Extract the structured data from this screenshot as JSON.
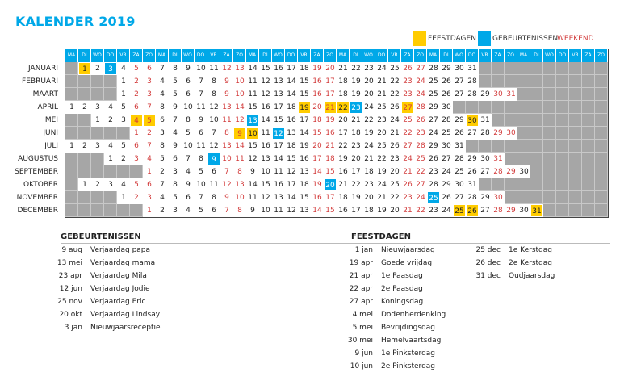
{
  "title": "KALENDER 2019",
  "legend": {
    "feestdagen": {
      "label": "FEESTDAGEN",
      "color": "#ffcc00"
    },
    "gebeurtenissen": {
      "label": "GEBEURTENISSEN",
      "color": "#00a8e8"
    },
    "weekend": {
      "label": "WEEKEND",
      "color": "#d23a3a"
    }
  },
  "weekdays": [
    "MA",
    "DI",
    "WO",
    "DO",
    "VR",
    "ZA",
    "ZO"
  ],
  "year": 2019,
  "months": [
    {
      "name": "JANUARI",
      "start": 1,
      "days": 31
    },
    {
      "name": "FEBRUARI",
      "start": 4,
      "days": 28
    },
    {
      "name": "MAART",
      "start": 4,
      "days": 31
    },
    {
      "name": "APRIL",
      "start": 0,
      "days": 30
    },
    {
      "name": "MEI",
      "start": 2,
      "days": 31
    },
    {
      "name": "JUNI",
      "start": 5,
      "days": 30
    },
    {
      "name": "JULI",
      "start": 0,
      "days": 31
    },
    {
      "name": "AUGUSTUS",
      "start": 3,
      "days": 31
    },
    {
      "name": "SEPTEMBER",
      "start": 6,
      "days": 30
    },
    {
      "name": "OKTOBER",
      "start": 1,
      "days": 31
    },
    {
      "name": "NOVEMBER",
      "start": 4,
      "days": 30
    },
    {
      "name": "DECEMBER",
      "start": 6,
      "days": 31
    }
  ],
  "highlights": {
    "feest": [
      "1-1",
      "4-19",
      "4-21",
      "4-22",
      "4-27",
      "5-4",
      "5-5",
      "5-30",
      "6-9",
      "6-10",
      "12-25",
      "12-26",
      "12-31"
    ],
    "geb": [
      "1-3",
      "4-23",
      "5-13",
      "6-12",
      "8-9",
      "10-20",
      "11-25"
    ]
  },
  "gebeurtenissen": {
    "heading": "GEBEURTENISSEN",
    "items": [
      {
        "date": "9 aug",
        "label": "Verjaardag papa"
      },
      {
        "date": "13 mei",
        "label": "Verjaardag mama"
      },
      {
        "date": "23 apr",
        "label": "Verjaardag Mila"
      },
      {
        "date": "12 jun",
        "label": "Verjaardag Jodie"
      },
      {
        "date": "25 nov",
        "label": "Verjaardag Eric"
      },
      {
        "date": "20 okt",
        "label": "Verjaardag Lindsay"
      },
      {
        "date": "3 jan",
        "label": "Nieuwjaarsreceptie"
      }
    ]
  },
  "feestdagen": {
    "heading": "FEESTDAGEN",
    "col1": [
      {
        "date": "1 jan",
        "label": "Nieuwjaarsdag"
      },
      {
        "date": "19 apr",
        "label": "Goede vrijdag"
      },
      {
        "date": "21 apr",
        "label": "1e Paasdag"
      },
      {
        "date": "22 apr",
        "label": "2e Paasdag"
      },
      {
        "date": "27 apr",
        "label": "Koningsdag"
      },
      {
        "date": "4 mei",
        "label": "Dodenherdenking"
      },
      {
        "date": "5 mei",
        "label": "Bevrijdingsdag"
      },
      {
        "date": "30 mei",
        "label": "Hemelvaartsdag"
      },
      {
        "date": "9 jun",
        "label": "1e Pinksterdag"
      },
      {
        "date": "10 jun",
        "label": "2e Pinksterdag"
      }
    ],
    "col2": [
      {
        "date": "25 dec",
        "label": "1e Kerstdag"
      },
      {
        "date": "26 dec",
        "label": "2e Kerstdag"
      },
      {
        "date": "31 dec",
        "label": "Oudjaarsdag"
      }
    ]
  }
}
